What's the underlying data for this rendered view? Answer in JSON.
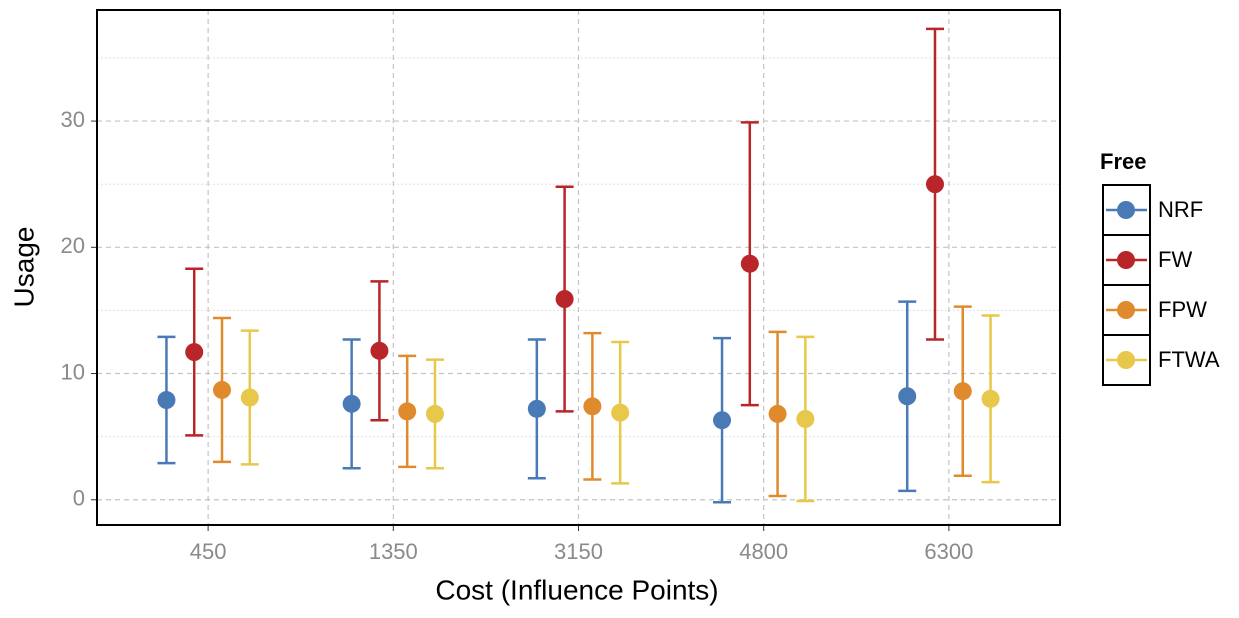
{
  "chart_data": {
    "type": "errorbar",
    "x_label": "Cost (Influence Points)",
    "y_label": "Usage",
    "categories": [
      "450",
      "1350",
      "3150",
      "4800",
      "6300"
    ],
    "legend_title": "Free",
    "legend_position": "right",
    "ylim": [
      -2,
      38.8
    ],
    "yticks": [
      0,
      10,
      20,
      30
    ],
    "minor_yticks": [
      5,
      15,
      25,
      35
    ],
    "grid": true,
    "series": [
      {
        "name": "NRF",
        "color": "#4a7ab5",
        "values": [
          7.9,
          7.6,
          7.2,
          6.3,
          8.2
        ],
        "errors": [
          5.0,
          5.1,
          5.5,
          6.5,
          7.5
        ]
      },
      {
        "name": "FW",
        "color": "#b8262a",
        "values": [
          11.7,
          11.8,
          15.9,
          18.7,
          25.0
        ],
        "errors": [
          6.6,
          5.5,
          8.9,
          11.2,
          12.3
        ]
      },
      {
        "name": "FPW",
        "color": "#e08a2e",
        "values": [
          8.7,
          7.0,
          7.4,
          6.8,
          8.6
        ],
        "errors": [
          5.7,
          4.4,
          5.8,
          6.5,
          6.7
        ]
      },
      {
        "name": "FTWA",
        "color": "#e8c84a",
        "values": [
          8.1,
          6.8,
          6.9,
          6.4,
          8.0
        ],
        "errors": [
          5.3,
          4.3,
          5.6,
          6.5,
          6.6
        ]
      }
    ]
  }
}
